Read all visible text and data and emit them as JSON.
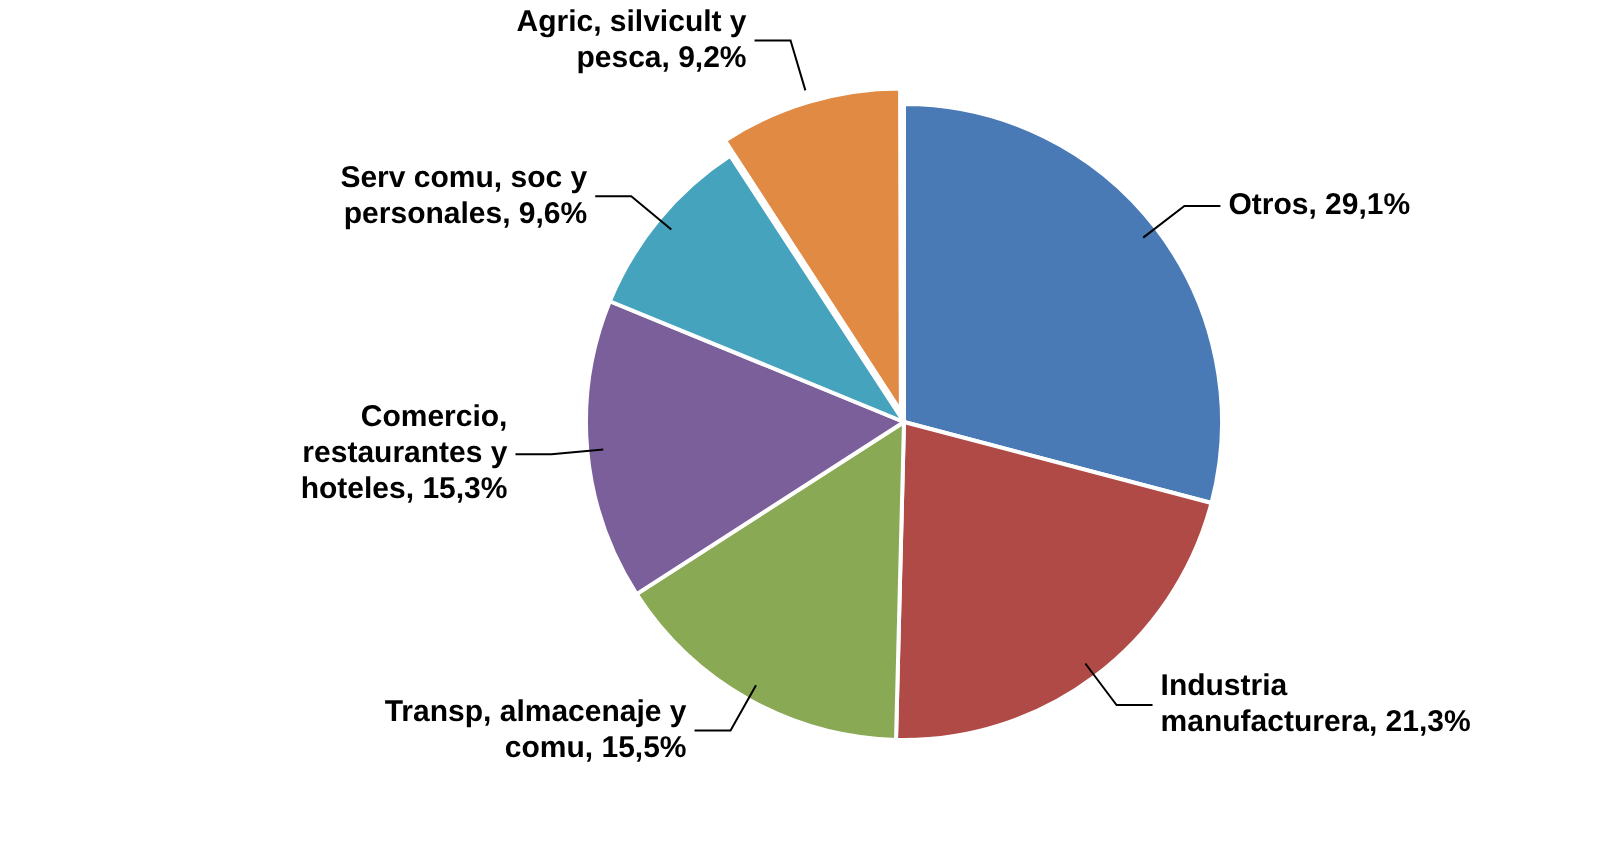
{
  "chart_data": {
    "type": "pie",
    "categories": [
      "Otros",
      "Industria manufacturera",
      "Transp, almacenaje y comu",
      "Comercio, restaurantes y hoteles",
      "Serv comu, soc y personales",
      "Agric, silvicult y pesca"
    ],
    "values": [
      29.1,
      21.3,
      15.5,
      15.3,
      9.6,
      9.2
    ],
    "value_labels": [
      "29,1%",
      "21,3%",
      "15,5%",
      "15,3%",
      "9,6%",
      "9,2%"
    ],
    "colors": [
      "#4a7ab5",
      "#b04a47",
      "#8aa955",
      "#7a5f9b",
      "#46a3bd",
      "#e08a44"
    ],
    "legend": false
  }
}
